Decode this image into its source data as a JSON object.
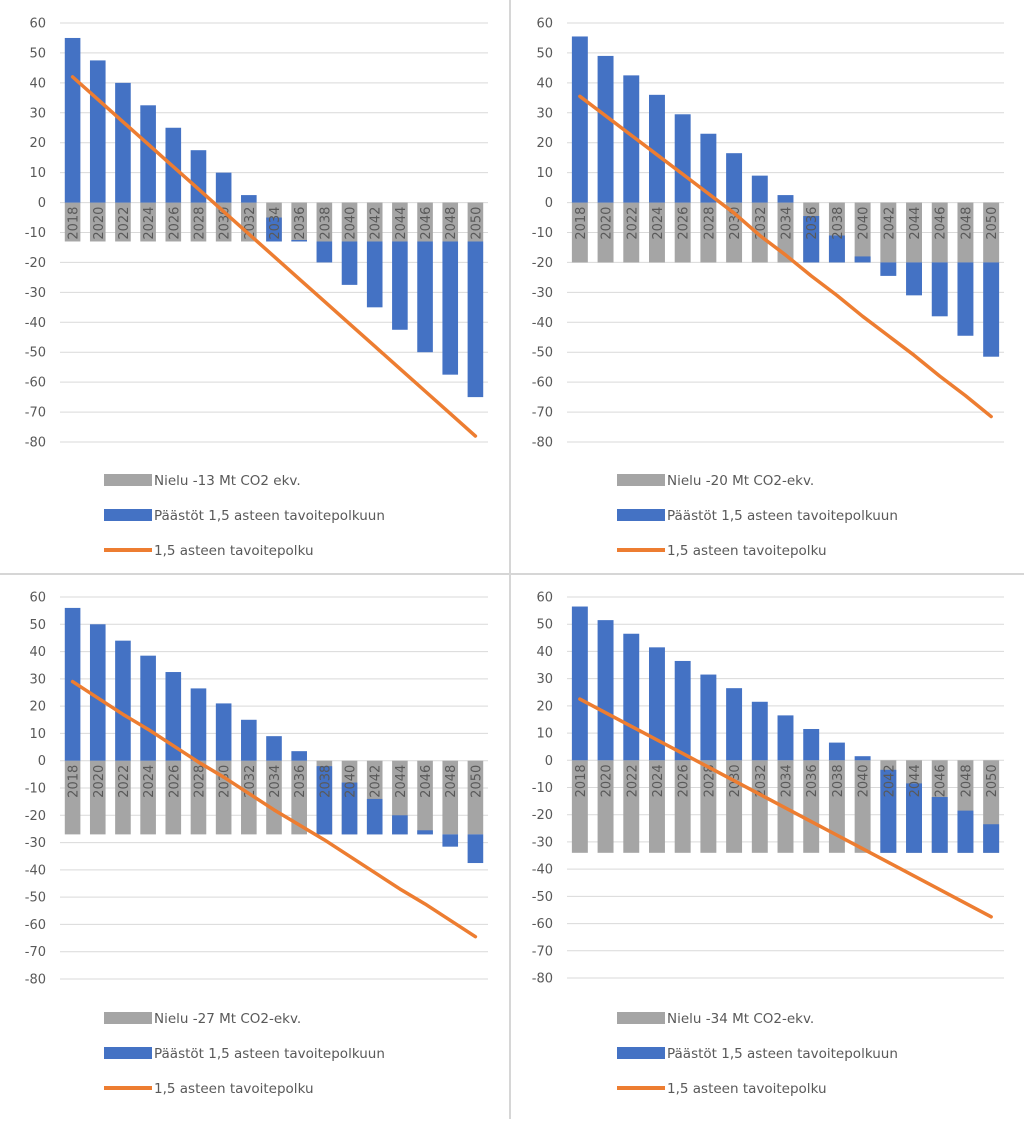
{
  "colors": {
    "sink": "#a5a5a5",
    "emissions": "#4472c4",
    "target_path": "#ed7d31",
    "gridline": "#d9d9d9",
    "text": "#595959"
  },
  "chart_data": [
    {
      "type": "bar",
      "stacked": true,
      "categories": [
        "2018",
        "2020",
        "2022",
        "2024",
        "2026",
        "2028",
        "2030",
        "2032",
        "2034",
        "2036",
        "2038",
        "2040",
        "2042",
        "2044",
        "2046",
        "2048",
        "2050"
      ],
      "ylim": [
        -80,
        60
      ],
      "yticks": [
        60,
        50,
        40,
        30,
        20,
        10,
        0,
        -10,
        -20,
        -30,
        -40,
        -50,
        -60,
        -70,
        -80
      ],
      "grid": true,
      "series": [
        {
          "name": "Nielu -13 Mt CO2 ekv.",
          "kind": "bar",
          "color_key": "sink",
          "values": [
            -13,
            -13,
            -13,
            -13,
            -13,
            -13,
            -13,
            -13,
            -13,
            -13,
            -13,
            -13,
            -13,
            -13,
            -13,
            -13,
            -13
          ]
        },
        {
          "name": "Päästöt 1,5 asteen tavoitepolkuun",
          "kind": "bar",
          "color_key": "emissions",
          "values": [
            55,
            47.5,
            40,
            32.5,
            25,
            17.5,
            10,
            2.5,
            -5,
            -12.5,
            -20,
            -27.5,
            -35,
            -42.5,
            -50,
            -57.5,
            -65
          ]
        },
        {
          "name": "1,5 asteen tavoitepolku",
          "kind": "line",
          "color_key": "target_path",
          "values": [
            42,
            34.5,
            27,
            19.5,
            12,
            4.5,
            -3,
            -10.5,
            -18,
            -25.5,
            -33,
            -40.5,
            -48,
            -55.5,
            -63,
            -70.5,
            -78
          ]
        }
      ]
    },
    {
      "type": "bar",
      "stacked": true,
      "categories": [
        "2018",
        "2020",
        "2022",
        "2024",
        "2026",
        "2028",
        "2030",
        "2032",
        "2034",
        "2036",
        "2038",
        "2040",
        "2042",
        "2044",
        "2046",
        "2048",
        "2050"
      ],
      "ylim": [
        -80,
        60
      ],
      "yticks": [
        60,
        50,
        40,
        30,
        20,
        10,
        0,
        -10,
        -20,
        -30,
        -40,
        -50,
        -60,
        -70,
        -80
      ],
      "grid": true,
      "series": [
        {
          "name": "Nielu -20 Mt CO2-ekv.",
          "kind": "bar",
          "color_key": "sink",
          "values": [
            -20,
            -20,
            -20,
            -20,
            -20,
            -20,
            -20,
            -20,
            -20,
            -20,
            -20,
            -20,
            -20,
            -20,
            -20,
            -20,
            -20
          ]
        },
        {
          "name": "Päästöt 1,5 asteen tavoitepolkuun",
          "kind": "bar",
          "color_key": "emissions",
          "values": [
            55.5,
            49,
            42.5,
            36,
            29.5,
            23,
            16.5,
            9,
            2.5,
            -4.5,
            -11,
            -18,
            -24.5,
            -31,
            -38,
            -44.5,
            -51.5
          ]
        },
        {
          "name": "1,5 asteen tavoitepolku",
          "kind": "line",
          "color_key": "target_path",
          "values": [
            35.5,
            29,
            22.5,
            16,
            9.5,
            3,
            -3.5,
            -11,
            -17.5,
            -24.5,
            -31,
            -38,
            -44.5,
            -51,
            -58,
            -64.5,
            -71.5
          ]
        }
      ]
    },
    {
      "type": "bar",
      "stacked": true,
      "categories": [
        "2018",
        "2020",
        "2022",
        "2024",
        "2026",
        "2028",
        "2030",
        "2032",
        "2034",
        "2036",
        "2038",
        "2040",
        "2042",
        "2044",
        "2046",
        "2048",
        "2050"
      ],
      "ylim": [
        -80,
        60
      ],
      "yticks": [
        60,
        50,
        40,
        30,
        20,
        10,
        0,
        -10,
        -20,
        -30,
        -40,
        -50,
        -60,
        -70,
        -80
      ],
      "grid": true,
      "series": [
        {
          "name": "Nielu -27 Mt CO2-ekv.",
          "kind": "bar",
          "color_key": "sink",
          "values": [
            -27,
            -27,
            -27,
            -27,
            -27,
            -27,
            -27,
            -27,
            -27,
            -27,
            -27,
            -27,
            -27,
            -27,
            -27,
            -27,
            -27
          ]
        },
        {
          "name": "Päästöt 1,5 asteen tavoitepolkuun",
          "kind": "bar",
          "color_key": "emissions",
          "values": [
            56,
            50,
            44,
            38.5,
            32.5,
            26.5,
            21,
            15,
            9,
            3.5,
            -2,
            -8,
            -14,
            -20,
            -25.5,
            -31.5,
            -37.5
          ]
        },
        {
          "name": "1,5 asteen tavoitepolku",
          "kind": "line",
          "color_key": "target_path",
          "values": [
            29,
            23,
            17,
            11.5,
            5.5,
            -0.5,
            -6,
            -12,
            -18,
            -23.5,
            -29,
            -35,
            -41,
            -47,
            -52.5,
            -58.5,
            -64.5
          ]
        }
      ]
    },
    {
      "type": "bar",
      "stacked": true,
      "categories": [
        "2018",
        "2020",
        "2022",
        "2024",
        "2026",
        "2028",
        "2030",
        "2032",
        "2034",
        "2036",
        "2038",
        "2040",
        "2042",
        "2044",
        "2046",
        "2048",
        "2050"
      ],
      "ylim": [
        -80,
        60
      ],
      "yticks": [
        60,
        50,
        40,
        30,
        20,
        10,
        0,
        -10,
        -20,
        -30,
        -40,
        -50,
        -60,
        -70,
        -80
      ],
      "grid": true,
      "series": [
        {
          "name": "Nielu -34 Mt CO2-ekv.",
          "kind": "bar",
          "color_key": "sink",
          "values": [
            -34,
            -34,
            -34,
            -34,
            -34,
            -34,
            -34,
            -34,
            -34,
            -34,
            -34,
            -34,
            -34,
            -34,
            -34,
            -34,
            -34
          ]
        },
        {
          "name": "Päästöt 1,5 asteen tavoitepolkuun",
          "kind": "bar",
          "color_key": "emissions",
          "values": [
            56.5,
            51.5,
            46.5,
            41.5,
            36.5,
            31.5,
            26.5,
            21.5,
            16.5,
            11.5,
            6.5,
            1.5,
            -3.5,
            -8.5,
            -13.5,
            -18.5,
            -23.5
          ]
        },
        {
          "name": "1,5 asteen tavoitepolku",
          "kind": "line",
          "color_key": "target_path",
          "values": [
            22.5,
            17.5,
            12.5,
            7.5,
            2.5,
            -2.5,
            -7.5,
            -12.5,
            -17.5,
            -22.5,
            -27.5,
            -32.5,
            -37.5,
            -42.5,
            -47.5,
            -52.5,
            -57.5
          ]
        }
      ]
    }
  ]
}
